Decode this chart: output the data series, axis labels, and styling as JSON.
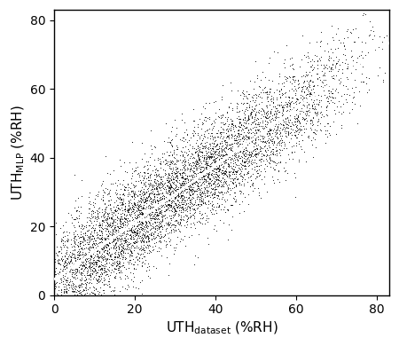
{
  "xlabel_base": "UTH",
  "xlabel_sub": "dataset",
  "xlabel_unit": " (%RH)",
  "ylabel_base": "UTH",
  "ylabel_sub": "MLP",
  "ylabel_unit": " (%RH)",
  "xlim": [
    0,
    83
  ],
  "ylim": [
    0,
    83
  ],
  "xticks": [
    0,
    20,
    40,
    60,
    80
  ],
  "yticks": [
    0,
    20,
    40,
    60,
    80
  ],
  "scatter_color": "#000000",
  "scatter_size": 1.5,
  "line_color": "#ffffff",
  "line_width": 2.2,
  "line_x": [
    0,
    83
  ],
  "line_y": [
    4.5,
    73.5
  ],
  "background_color": "#ffffff",
  "n_points": 6000,
  "seed": 42,
  "spread": 7.5,
  "slope": 0.831,
  "intercept": 4.5,
  "beta_a": 1.4,
  "beta_b": 2.2,
  "x_scale": 83
}
